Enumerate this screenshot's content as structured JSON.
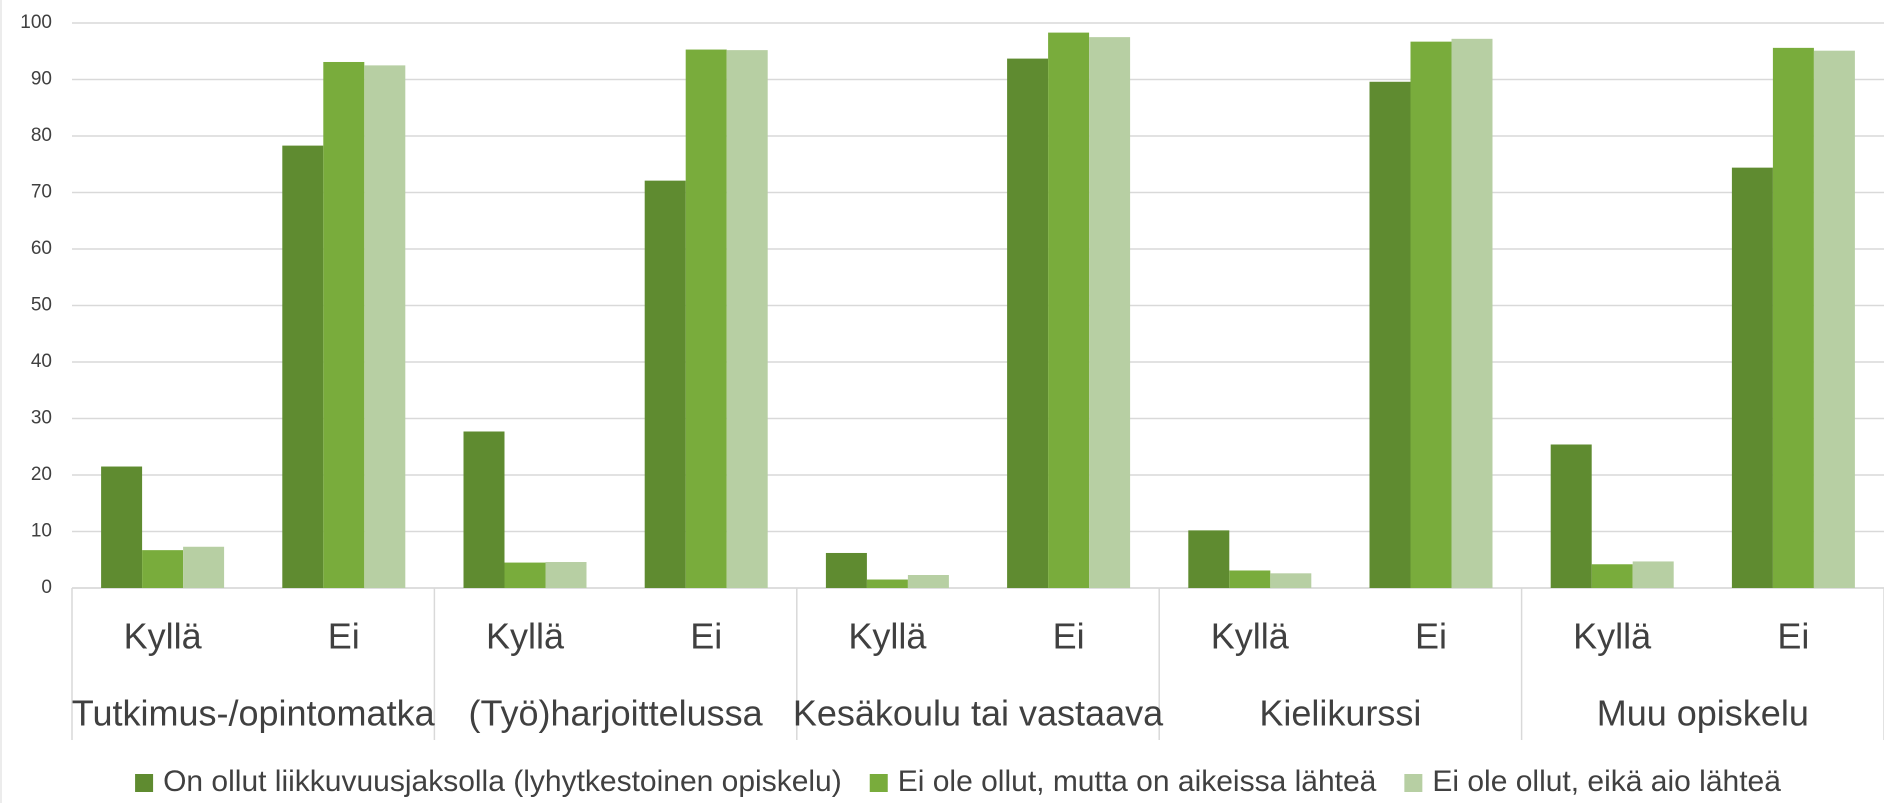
{
  "chart_data": {
    "type": "bar",
    "categories": [
      "Kyllä",
      "Ei",
      "Kyllä",
      "Ei",
      "Kyllä",
      "Ei",
      "Kyllä",
      "Ei",
      "Kyllä",
      "Ei"
    ],
    "groups": [
      "Tutkimus-/opintomatka",
      "(Työ)harjoittelussa",
      "Kesäkoulu tai vastaava",
      "Kielikurssi",
      "Muu opiskelu"
    ],
    "series": [
      {
        "name": "On ollut liikkuvuusjaksolla (lyhytkestoinen opiskelu)",
        "color": "#5f8b30",
        "values": [
          21.5,
          78.3,
          27.7,
          72.1,
          6.2,
          93.7,
          10.2,
          89.6,
          25.4,
          74.4
        ]
      },
      {
        "name": "Ei ole ollut,  mutta on aikeissa lähteä",
        "color": "#79ac3c",
        "values": [
          6.7,
          93.1,
          4.5,
          95.3,
          1.5,
          98.3,
          3.1,
          96.7,
          4.2,
          95.6
        ]
      },
      {
        "name": "Ei ole ollut, eikä aio lähteä",
        "color": "#b7cfa3",
        "values": [
          7.3,
          92.5,
          4.6,
          95.2,
          2.3,
          97.5,
          2.6,
          97.2,
          4.7,
          95.1
        ]
      }
    ],
    "ylim": [
      0,
      100
    ],
    "yticks": [
      0,
      10,
      20,
      30,
      40,
      50,
      60,
      70,
      80,
      90,
      100
    ],
    "grid": true,
    "legend": "bottom"
  }
}
